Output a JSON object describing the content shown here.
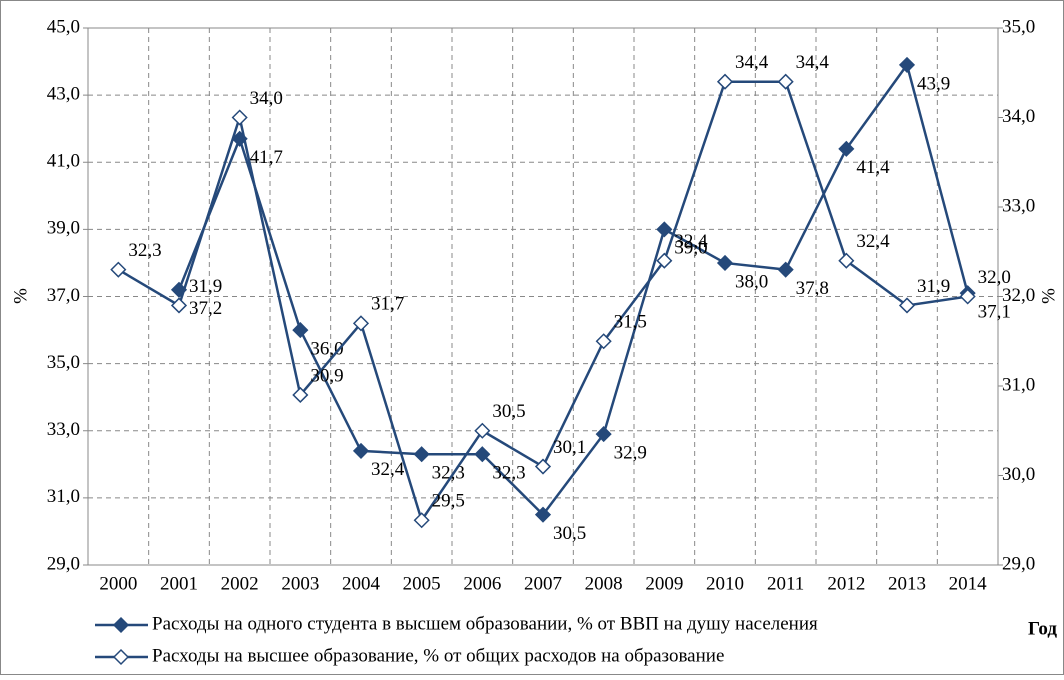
{
  "chart_data": {
    "type": "line",
    "categories": [
      "2000",
      "2001",
      "2002",
      "2003",
      "2004",
      "2005",
      "2006",
      "2007",
      "2008",
      "2009",
      "2010",
      "2011",
      "2012",
      "2013",
      "2014"
    ],
    "x_label": "Год",
    "y_label": "%",
    "y2_label": "%",
    "ylim": [
      29,
      45
    ],
    "yticks": [
      {
        "value": 29,
        "label": "29,0"
      },
      {
        "value": 31,
        "label": "31,0"
      },
      {
        "value": 33,
        "label": "33,0"
      },
      {
        "value": 35,
        "label": "35,0"
      },
      {
        "value": 37,
        "label": "37,0"
      },
      {
        "value": 39,
        "label": "39,0"
      },
      {
        "value": 41,
        "label": "41,0"
      },
      {
        "value": 43,
        "label": "43,0"
      },
      {
        "value": 45,
        "label": "45,0"
      }
    ],
    "y2lim": [
      29,
      35
    ],
    "y2ticks": [
      {
        "value": 29,
        "label": "29,0"
      },
      {
        "value": 30,
        "label": "30,0"
      },
      {
        "value": 31,
        "label": "31,0"
      },
      {
        "value": 32,
        "label": "32,0"
      },
      {
        "value": 33,
        "label": "33,0"
      },
      {
        "value": 34,
        "label": "34,0"
      },
      {
        "value": 35,
        "label": "35,0"
      }
    ],
    "grid": true,
    "series": [
      {
        "name": "Расходы на одного студента в высшем образовании, % от ВВП на душу населения",
        "color": "#25497a",
        "marker": "filled",
        "values": [
          null,
          37.2,
          41.7,
          36.0,
          32.4,
          32.3,
          32.3,
          30.5,
          32.9,
          39.0,
          38.0,
          37.8,
          41.4,
          43.9,
          37.1
        ],
        "value_labels": [
          null,
          "37,2",
          "41,7",
          "36,0",
          "32,4",
          "32,3",
          "32,3",
          "30,5",
          "32,9",
          "39,0",
          "38,0",
          "37,8",
          "41,4",
          "43,9",
          "37,1"
        ]
      },
      {
        "name": "Расходы на высшее образование, % от общих расходов на образование",
        "color": "#25497a",
        "marker": "hollow",
        "axis": "y2",
        "values": [
          32.3,
          31.9,
          34.0,
          30.9,
          31.7,
          29.5,
          30.5,
          30.1,
          31.5,
          32.4,
          34.4,
          34.4,
          32.4,
          31.9,
          32.0
        ],
        "value_labels": [
          "32,3",
          "31,9",
          "34,0",
          "30,9",
          "31,7",
          "29,5",
          "30,5",
          "30,1",
          "31,5",
          "32,4",
          "34,4",
          "34,4",
          "32,4",
          "31,9",
          "32,0"
        ]
      }
    ]
  }
}
